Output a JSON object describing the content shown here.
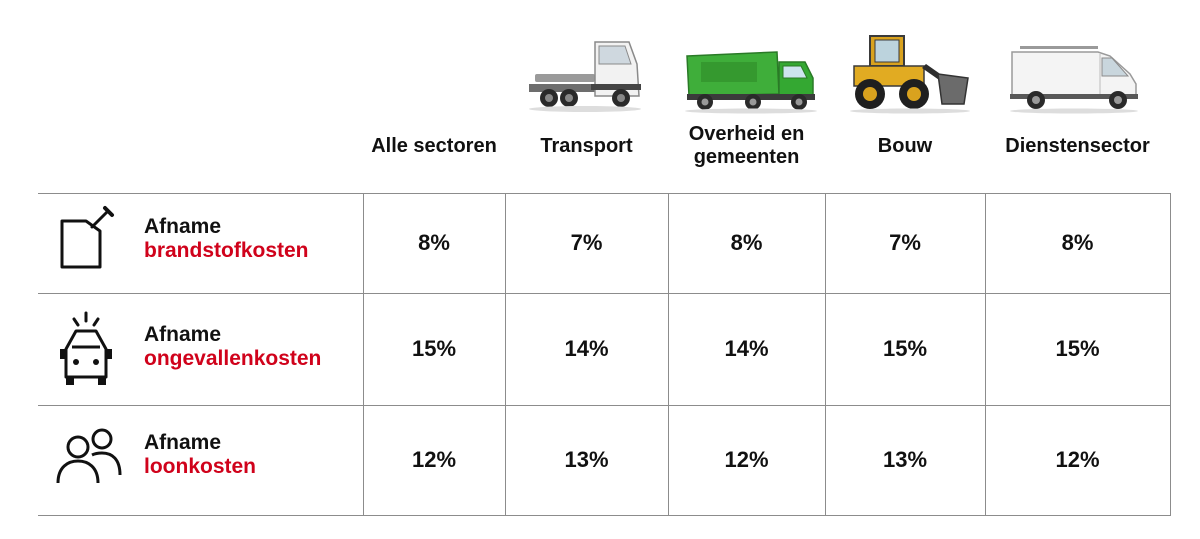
{
  "chart_data": {
    "type": "table",
    "columns": [
      {
        "label": "Alle sectoren",
        "vehicle": "none"
      },
      {
        "label": "Transport",
        "vehicle": "truck-icon"
      },
      {
        "label": "Overheid en gemeenten",
        "vehicle": "garbage-truck-icon"
      },
      {
        "label": "Bouw",
        "vehicle": "wheel-loader-icon"
      },
      {
        "label": "Dienstensector",
        "vehicle": "van-icon"
      }
    ],
    "rows": [
      {
        "label_top": "Afname",
        "label_bottom": "brandstofkosten",
        "icon": "fuel-can-icon",
        "values": [
          "8%",
          "7%",
          "8%",
          "7%",
          "8%"
        ]
      },
      {
        "label_top": "Afname",
        "label_bottom": "ongevallenkosten",
        "icon": "car-accident-icon",
        "values": [
          "15%",
          "14%",
          "14%",
          "15%",
          "15%"
        ]
      },
      {
        "label_top": "Afname",
        "label_bottom": "loonkosten",
        "icon": "people-icon",
        "values": [
          "12%",
          "13%",
          "12%",
          "13%",
          "12%"
        ]
      }
    ],
    "colors": {
      "accent": "#d0021b",
      "text": "#111111",
      "grid": "#8c8c8c"
    }
  }
}
